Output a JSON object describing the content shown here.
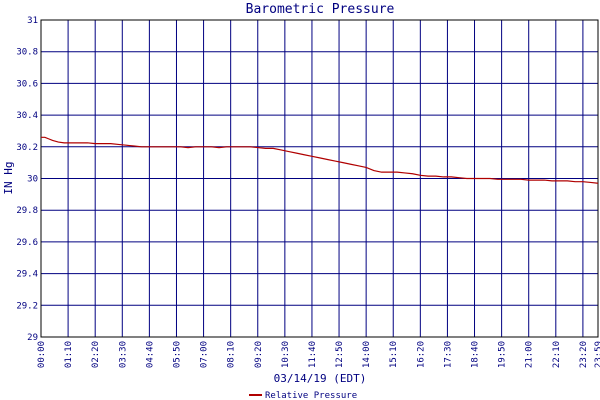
{
  "chart_data": {
    "type": "line",
    "title": "Barometric Pressure",
    "xlabel": "03/14/19 (EDT)",
    "ylabel": "IN Hg",
    "ylim": [
      29,
      31
    ],
    "yticks": [
      "29",
      "29.2",
      "29.4",
      "29.6",
      "29.8",
      "30",
      "30.2",
      "30.4",
      "30.6",
      "30.8",
      "31"
    ],
    "xticks": [
      "00:00",
      "01:10",
      "02:20",
      "03:30",
      "04:40",
      "05:50",
      "07:00",
      "08:10",
      "09:20",
      "10:30",
      "11:40",
      "12:50",
      "14:00",
      "15:10",
      "16:20",
      "17:30",
      "18:40",
      "19:50",
      "21:00",
      "22:10",
      "23:20",
      "23:59"
    ],
    "grid": true,
    "legend_position": "bottom",
    "colors": {
      "series": "#b00000",
      "grid": "#000080",
      "frame": "#000000"
    },
    "series": [
      {
        "name": "Relative Pressure",
        "x_minutes": [
          0,
          10,
          20,
          30,
          45,
          60,
          80,
          100,
          120,
          140,
          160,
          180,
          200,
          220,
          240,
          260,
          280,
          300,
          320,
          340,
          360,
          380,
          400,
          420,
          440,
          460,
          480,
          500,
          520,
          540,
          560,
          580,
          600,
          620,
          640,
          660,
          680,
          700,
          720,
          740,
          760,
          780,
          800,
          820,
          840,
          860,
          880,
          900,
          920,
          940,
          960,
          980,
          1000,
          1020,
          1040,
          1060,
          1080,
          1100,
          1120,
          1140,
          1160,
          1180,
          1200,
          1220,
          1240,
          1260,
          1280,
          1300,
          1320,
          1340,
          1360,
          1380,
          1400,
          1420,
          1439
        ],
        "values": [
          30.26,
          30.26,
          30.25,
          30.24,
          30.23,
          30.225,
          30.225,
          30.225,
          30.225,
          30.22,
          30.22,
          30.22,
          30.215,
          30.21,
          30.205,
          30.2,
          30.2,
          30.2,
          30.2,
          30.2,
          30.2,
          30.195,
          30.2,
          30.2,
          30.2,
          30.195,
          30.2,
          30.2,
          30.2,
          30.2,
          30.195,
          30.19,
          30.19,
          30.18,
          30.17,
          30.16,
          30.15,
          30.14,
          30.13,
          30.12,
          30.11,
          30.1,
          30.09,
          30.08,
          30.07,
          30.05,
          30.04,
          30.04,
          30.04,
          30.035,
          30.03,
          30.02,
          30.015,
          30.015,
          30.01,
          30.01,
          30.005,
          30.0,
          30.0,
          30.0,
          30.0,
          29.995,
          29.995,
          29.995,
          29.995,
          29.99,
          29.99,
          29.99,
          29.985,
          29.985,
          29.985,
          29.98,
          29.98,
          29.975,
          29.97
        ]
      }
    ]
  }
}
